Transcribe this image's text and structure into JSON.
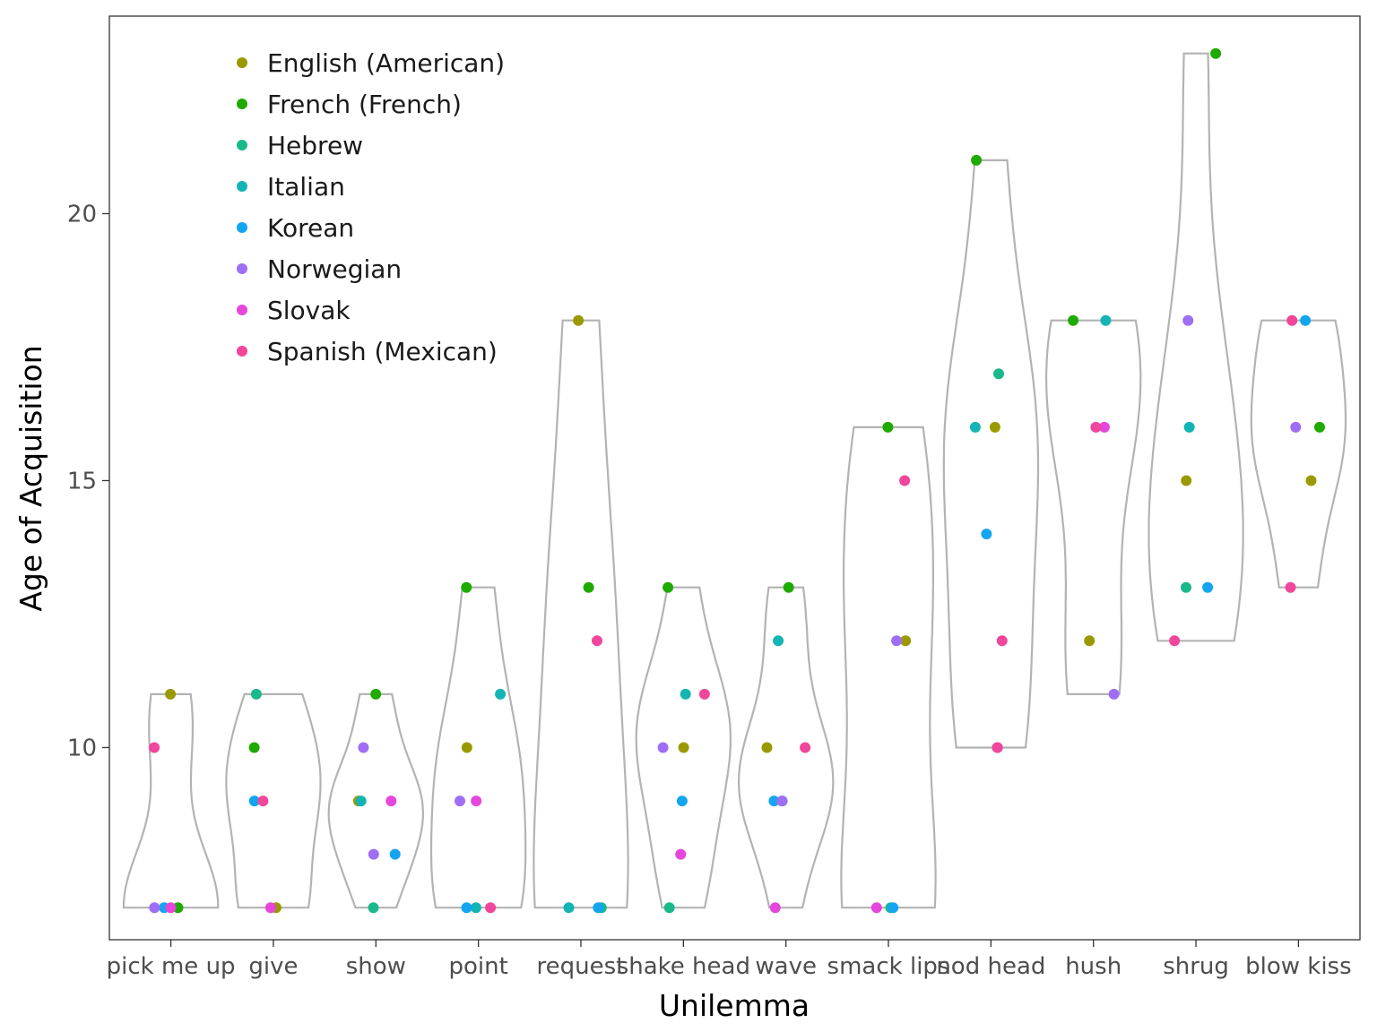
{
  "chart_data": {
    "type": "scatter",
    "subtype": "violin-with-jittered-points",
    "title": "",
    "xlabel": "Unilemma",
    "ylabel": "Age of Acquisition",
    "ylim": [
      6.4,
      23.7
    ],
    "yticks": [
      10,
      15,
      20
    ],
    "grid": false,
    "legend_position": "top-left",
    "categories": [
      "pick me up",
      "give",
      "show",
      "point",
      "request",
      "shake head",
      "wave",
      "smack lips",
      "nod head",
      "hush",
      "shrug",
      "blow kiss"
    ],
    "series": [
      {
        "name": "English (American)",
        "color": "#9a9a00",
        "points": [
          {
            "category": "pick me up",
            "y": 11
          },
          {
            "category": "give",
            "y": 7
          },
          {
            "category": "show",
            "y": 9
          },
          {
            "category": "point",
            "y": 10
          },
          {
            "category": "request",
            "y": 18
          },
          {
            "category": "shake head",
            "y": 10
          },
          {
            "category": "wave",
            "y": 10
          },
          {
            "category": "smack lips",
            "y": 12
          },
          {
            "category": "nod head",
            "y": 16
          },
          {
            "category": "hush",
            "y": 12
          },
          {
            "category": "shrug",
            "y": 15
          },
          {
            "category": "blow kiss",
            "y": 15
          }
        ]
      },
      {
        "name": "French (French)",
        "color": "#1faa00",
        "points": [
          {
            "category": "pick me up",
            "y": 7
          },
          {
            "category": "give",
            "y": 10
          },
          {
            "category": "show",
            "y": 11
          },
          {
            "category": "point",
            "y": 13
          },
          {
            "category": "request",
            "y": 13
          },
          {
            "category": "shake head",
            "y": 13
          },
          {
            "category": "wave",
            "y": 13
          },
          {
            "category": "smack lips",
            "y": 16
          },
          {
            "category": "nod head",
            "y": 21
          },
          {
            "category": "hush",
            "y": 18
          },
          {
            "category": "shrug",
            "y": 23
          },
          {
            "category": "blow kiss",
            "y": 16
          }
        ]
      },
      {
        "name": "Hebrew",
        "color": "#1ab98c",
        "points": [
          {
            "category": "give",
            "y": 11
          },
          {
            "category": "show",
            "y": 7
          },
          {
            "category": "request",
            "y": 7
          },
          {
            "category": "shake head",
            "y": 7
          },
          {
            "category": "wave",
            "y": 9
          },
          {
            "category": "smack lips",
            "y": 7
          },
          {
            "category": "nod head",
            "y": 17
          },
          {
            "category": "shrug",
            "y": 13
          }
        ]
      },
      {
        "name": "Italian",
        "color": "#14b4b4",
        "points": [
          {
            "category": "show",
            "y": 9
          },
          {
            "category": "point",
            "y": 11
          },
          {
            "category": "point",
            "y": 7
          },
          {
            "category": "request",
            "y": 7
          },
          {
            "category": "shake head",
            "y": 11
          },
          {
            "category": "wave",
            "y": 12
          },
          {
            "category": "nod head",
            "y": 16
          },
          {
            "category": "hush",
            "y": 18
          },
          {
            "category": "shrug",
            "y": 16
          }
        ]
      },
      {
        "name": "Korean",
        "color": "#14a5f0",
        "points": [
          {
            "category": "pick me up",
            "y": 7
          },
          {
            "category": "give",
            "y": 9
          },
          {
            "category": "show",
            "y": 8
          },
          {
            "category": "point",
            "y": 7
          },
          {
            "category": "request",
            "y": 7
          },
          {
            "category": "shake head",
            "y": 9
          },
          {
            "category": "wave",
            "y": 9
          },
          {
            "category": "smack lips",
            "y": 7
          },
          {
            "category": "nod head",
            "y": 14
          },
          {
            "category": "shrug",
            "y": 13
          },
          {
            "category": "blow kiss",
            "y": 18
          }
        ]
      },
      {
        "name": "Norwegian",
        "color": "#a06ef5",
        "points": [
          {
            "category": "pick me up",
            "y": 7
          },
          {
            "category": "show",
            "y": 10
          },
          {
            "category": "show",
            "y": 8
          },
          {
            "category": "point",
            "y": 9
          },
          {
            "category": "shake head",
            "y": 10
          },
          {
            "category": "wave",
            "y": 9
          },
          {
            "category": "smack lips",
            "y": 12
          },
          {
            "category": "nod head",
            "y": 10
          },
          {
            "category": "hush",
            "y": 11
          },
          {
            "category": "shrug",
            "y": 18
          },
          {
            "category": "blow kiss",
            "y": 16
          }
        ]
      },
      {
        "name": "Slovak",
        "color": "#e646dc",
        "points": [
          {
            "category": "pick me up",
            "y": 7
          },
          {
            "category": "give",
            "y": 7
          },
          {
            "category": "show",
            "y": 9
          },
          {
            "category": "point",
            "y": 9
          },
          {
            "category": "shake head",
            "y": 8
          },
          {
            "category": "wave",
            "y": 7
          },
          {
            "category": "smack lips",
            "y": 7
          },
          {
            "category": "hush",
            "y": 16
          }
        ]
      },
      {
        "name": "Spanish (Mexican)",
        "color": "#f0469b",
        "points": [
          {
            "category": "pick me up",
            "y": 10
          },
          {
            "category": "give",
            "y": 9
          },
          {
            "category": "point",
            "y": 7
          },
          {
            "category": "request",
            "y": 12
          },
          {
            "category": "shake head",
            "y": 11
          },
          {
            "category": "wave",
            "y": 10
          },
          {
            "category": "smack lips",
            "y": 15
          },
          {
            "category": "nod head",
            "y": 12
          },
          {
            "category": "nod head",
            "y": 10
          },
          {
            "category": "hush",
            "y": 16
          },
          {
            "category": "shrug",
            "y": 12
          },
          {
            "category": "blow kiss",
            "y": 13
          },
          {
            "category": "blow kiss",
            "y": 18
          }
        ]
      }
    ]
  }
}
